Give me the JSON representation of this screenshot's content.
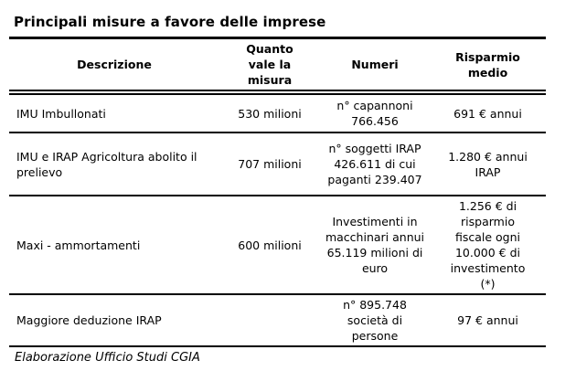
{
  "page": {
    "title": "Principali misure a favore delle imprese",
    "source_note": "Elaborazione Ufficio Studi CGIA"
  },
  "table": {
    "headers": [
      "Descrizione",
      "Quanto\nvale la\nmisura",
      "Numeri",
      "Risparmio\nmedio"
    ],
    "rows": [
      {
        "cells": [
          "IMU Imbullonati",
          "530 milioni",
          "n° capannoni\n766.456",
          "691 € annui"
        ]
      },
      {
        "cells": [
          "IMU e IRAP Agricoltura abolito il\nprelievo",
          "707 milioni",
          "n° soggetti IRAP\n426.611 di cui\npaganti 239.407",
          "1.280 € annui\nIRAP"
        ]
      },
      {
        "cells": [
          "Maxi - ammortamenti",
          "600 milioni",
          "Investimenti in\nmacchinari annui\n65.119 milioni di\neuro",
          "1.256 € di\nrisparmio\nfiscale ogni\n10.000 € di\ninvestimento\n(*)"
        ]
      },
      {
        "cells": [
          "Maggiore deduzione IRAP",
          "",
          "n° 895.748\nsocietà di\npersone",
          "97 € annui"
        ]
      }
    ]
  }
}
